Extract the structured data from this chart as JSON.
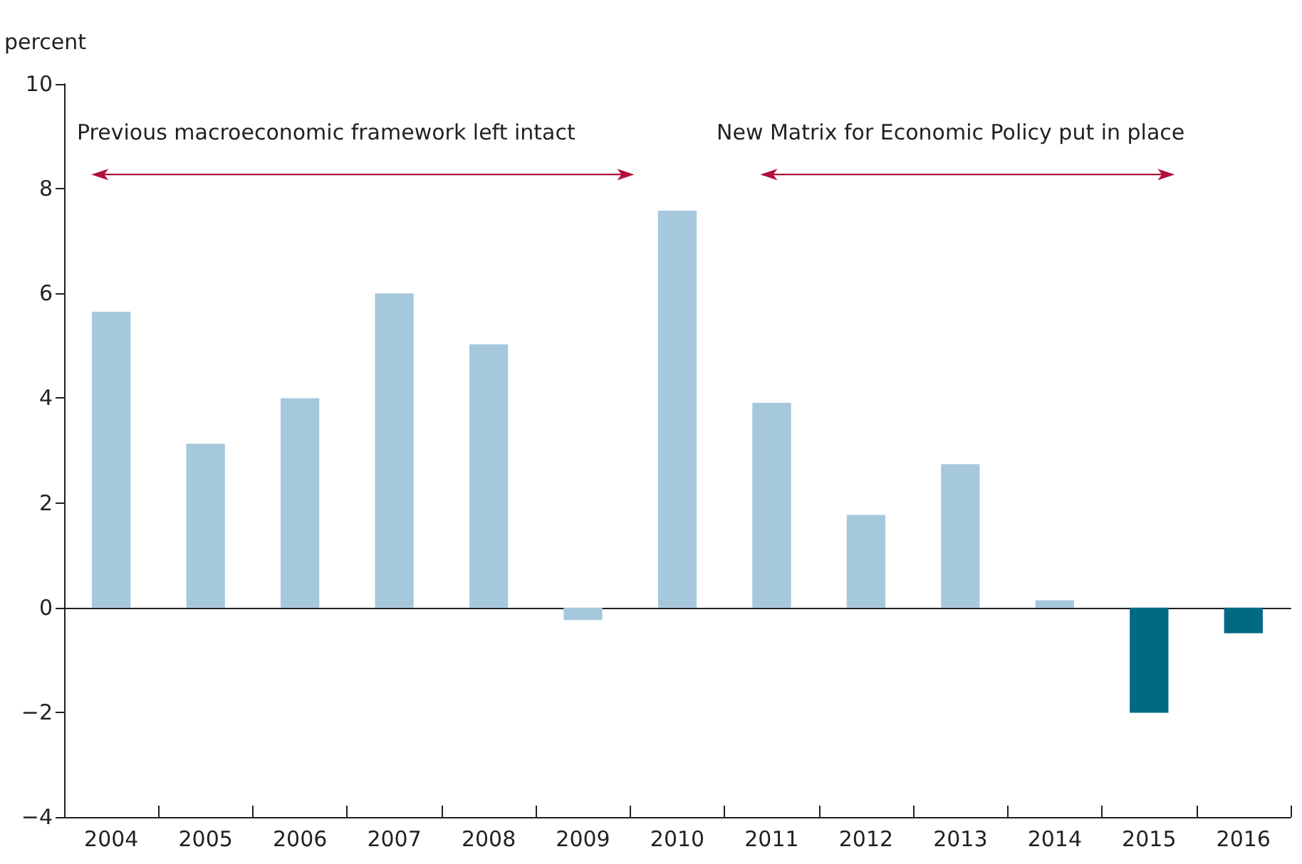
{
  "chart_data": {
    "type": "bar",
    "ylabel": "percent",
    "categories": [
      "2004",
      "2005",
      "2006",
      "2007",
      "2008",
      "2009",
      "2010",
      "2011",
      "2012",
      "2013",
      "2014",
      "2015",
      "2016"
    ],
    "values": [
      5.65,
      3.13,
      4.0,
      6.0,
      5.03,
      -0.24,
      7.58,
      3.91,
      1.77,
      2.74,
      0.14,
      -2.01,
      -0.49
    ],
    "colors": [
      "#a6c8dd",
      "#a6c8dd",
      "#a6c8dd",
      "#a6c8dd",
      "#a6c8dd",
      "#a6c8dd",
      "#a6c8dd",
      "#a6c8dd",
      "#a6c8dd",
      "#a6c8dd",
      "#a6c8dd",
      "#006a84",
      "#006a84"
    ],
    "ylim": [
      -4,
      10
    ],
    "yticks": [
      -4,
      -2,
      0,
      2,
      4,
      6,
      8,
      10
    ],
    "annotations": [
      "Previous macroeconomic framework left intact",
      "New Matrix for Economic Policy put in place"
    ]
  }
}
